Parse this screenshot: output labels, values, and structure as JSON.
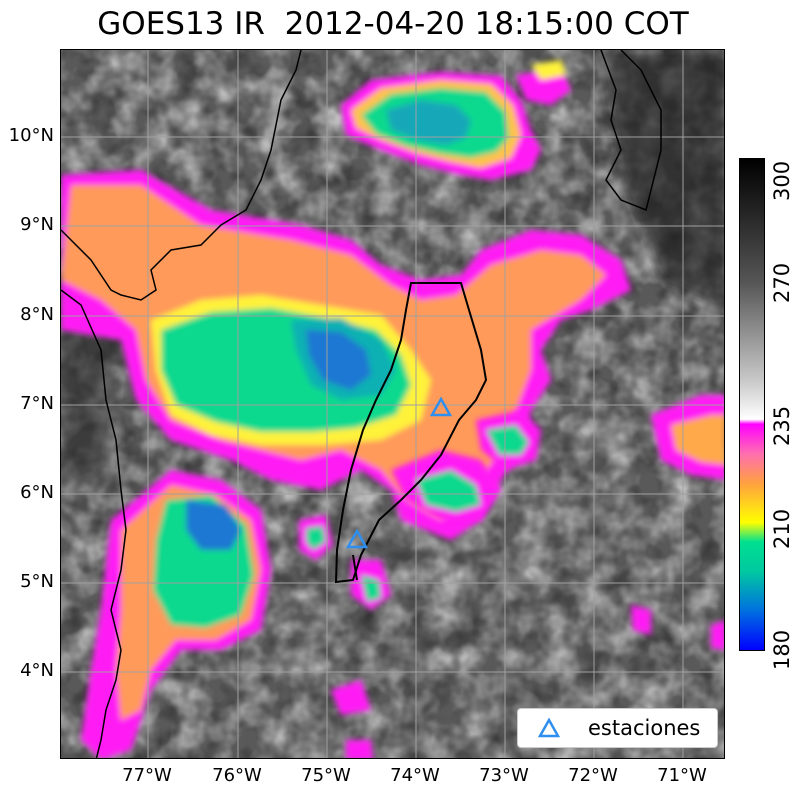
{
  "title": "GOES13 IR  2012-04-20 18:15:00 COT",
  "map": {
    "lat_labels": [
      "10°N",
      "9°N",
      "8°N",
      "7°N",
      "6°N",
      "5°N",
      "4°N"
    ],
    "lon_labels": [
      "77°W",
      "76°W",
      "75°W",
      "74°W",
      "73°W",
      "72°W",
      "71°W"
    ],
    "gridlines": true,
    "background": "satellite infrared brightness temperature"
  },
  "legend": {
    "label": "estaciones",
    "marker": "triangle-icon",
    "marker_color": "#2f8ff0",
    "placement": "bottom-right"
  },
  "stations": [
    {
      "lon": -73.7,
      "lat": 6.95
    },
    {
      "lon": -74.7,
      "lat": 5.45
    }
  ],
  "colorbar": {
    "ticks": [
      "300",
      "270",
      "235",
      "210",
      "180"
    ],
    "range": [
      180,
      300
    ],
    "colors": {
      "cold": "#0000ff",
      "cyan_green": "#00e090",
      "yellow": "#ffff00",
      "orange": "#ffa040",
      "magenta": "#ff00ff",
      "warm_white": "#ffffff",
      "warm_black": "#000000"
    }
  }
}
